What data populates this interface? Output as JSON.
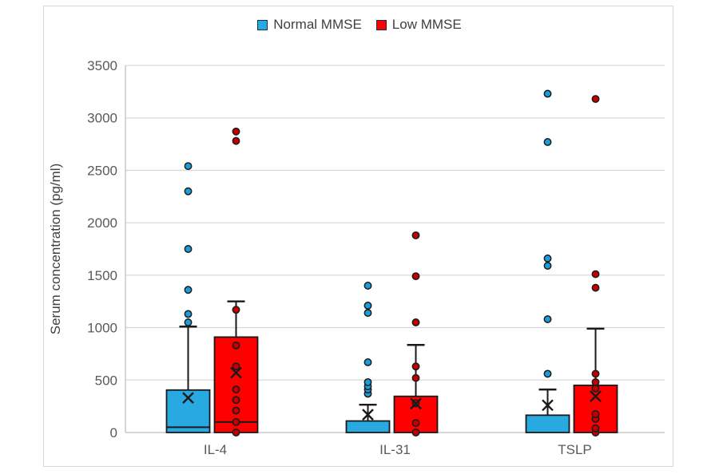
{
  "chart_data": {
    "type": "box-scatter",
    "title": "",
    "ylabel": "Serum concentration (pg/ml)",
    "xlabel": "",
    "ylim": [
      0,
      3500
    ],
    "ytick_step": 500,
    "ytick_labels": [
      "0",
      "500",
      "1000",
      "1500",
      "2000",
      "2500",
      "3000",
      "3500"
    ],
    "grid": "horizontal",
    "legend_position": "top-center",
    "categories": [
      "IL-4",
      "IL-31",
      "TSLP"
    ],
    "colors": {
      "normal_fill": "#29a9e1",
      "normal_point": "#1b9dd9",
      "low_fill": "#fe0000",
      "low_point": "#c00000",
      "stroke": "#1a1a1a",
      "gridline": "#d9d9d9",
      "axis_line": "#bfbfbf",
      "tick_text": "#595959",
      "legend_text": "#3f3f3f"
    },
    "series": [
      {
        "name": "Normal MMSE",
        "fill": "#29a9e1",
        "point_fill": "#1b9dd9",
        "groups": [
          {
            "category": "IL-4",
            "box_top": 405,
            "median": 50,
            "mean": 330,
            "whisker_top": 1010,
            "points": [
              1050,
              1130,
              1360,
              1750,
              2300,
              2540
            ]
          },
          {
            "category": "IL-31",
            "box_top": 110,
            "median": 0,
            "mean": 170,
            "whisker_top": 265,
            "points": [
              370,
              410,
              440,
              480,
              670,
              1140,
              1210,
              1400
            ]
          },
          {
            "category": "TSLP",
            "box_top": 165,
            "median": 0,
            "mean": 260,
            "whisker_top": 410,
            "points": [
              560,
              1080,
              1590,
              1660,
              2770,
              3230
            ]
          }
        ]
      },
      {
        "name": "Low MMSE",
        "fill": "#fe0000",
        "point_fill": "#c00000",
        "groups": [
          {
            "category": "IL-4",
            "box_top": 910,
            "median": 100,
            "mean": 570,
            "whisker_top": 1250,
            "points": [
              0,
              100,
              210,
              310,
              410,
              630,
              830,
              1170,
              2780,
              2870
            ]
          },
          {
            "category": "IL-31",
            "box_top": 345,
            "median": 0,
            "mean": 275,
            "whisker_top": 835,
            "points": [
              0,
              90,
              280,
              520,
              630,
              1050,
              1490,
              1880
            ]
          },
          {
            "category": "TSLP",
            "box_top": 450,
            "median": 0,
            "mean": 345,
            "whisker_top": 990,
            "points": [
              0,
              40,
              130,
              175,
              420,
              480,
              560,
              1380,
              1510,
              3180
            ]
          }
        ]
      }
    ]
  },
  "legend": {
    "items": [
      {
        "label": "Normal MMSE",
        "color": "#29a9e1"
      },
      {
        "label": "Low MMSE",
        "color": "#fe0000"
      }
    ]
  },
  "axes": {
    "y_title": "Serum concentration (pg/ml)"
  }
}
